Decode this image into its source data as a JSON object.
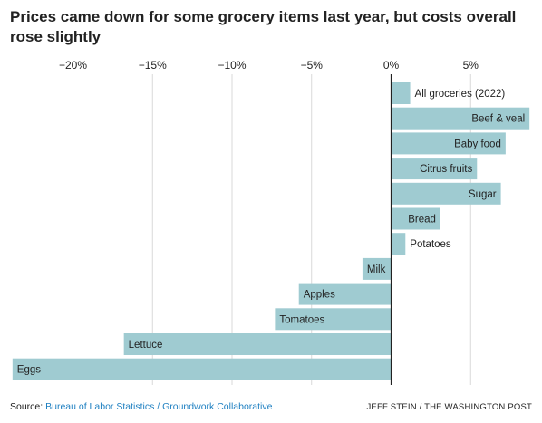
{
  "title": "Prices came down for some grocery items last year, but costs overall rose slightly",
  "footer": {
    "source_prefix": "Source: ",
    "source_link": "Bureau of Labor Statistics / Groundwork Collaborative",
    "credit": "JEFF STEIN / THE WASHINGTON POST"
  },
  "colors": {
    "bar": "#9fcbd1",
    "grid": "#d9d9d9",
    "axis": "#222222"
  },
  "chart_data": {
    "type": "bar",
    "orientation": "horizontal",
    "title": "Prices came down for some grocery items last year, but costs overall rose slightly",
    "xlabel": "",
    "ylabel": "",
    "xlim": [
      -24,
      8.5
    ],
    "grid": true,
    "tick_values": [
      -20,
      -15,
      -10,
      -5,
      0,
      5
    ],
    "tick_labels": [
      "−20%",
      "−15%",
      "−10%",
      "−5%",
      "0%",
      "5%"
    ],
    "categories": [
      "All groceries (2022)",
      "Beef & veal",
      "Baby food",
      "Citrus fruits",
      "Sugar",
      "Bread",
      "Potatoes",
      "Milk",
      "Apples",
      "Tomatoes",
      "Lettuce",
      "Eggs"
    ],
    "values": [
      1.2,
      8.7,
      7.2,
      5.4,
      6.9,
      3.1,
      0.9,
      -1.8,
      -5.8,
      -7.3,
      -16.8,
      -23.8
    ],
    "label_positions": [
      "outside",
      "inside",
      "inside",
      "inside",
      "inside",
      "inside",
      "outside",
      "inside",
      "inside",
      "inside",
      "inside",
      "inside"
    ]
  }
}
